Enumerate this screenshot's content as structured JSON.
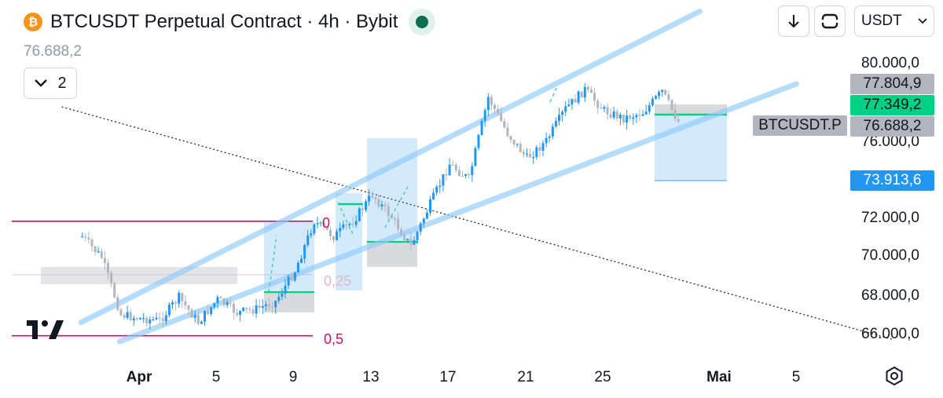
{
  "header": {
    "coin_symbol": "₿",
    "title": "BTCUSDT Perpetual Contract · 4h · Bybit",
    "last_price": "76.688,2",
    "indicator_count": "2"
  },
  "toolbar": {
    "currency": "USDT",
    "download_icon": "arrow-down-icon",
    "fullscreen_icon": "fullscreen-icon",
    "settings_icon": "settings-icon"
  },
  "price_axis": {
    "labels": [
      "80.000,0",
      "76.000,0",
      "72.000,0",
      "70.000,0",
      "68.000,0",
      "66.000,0"
    ]
  },
  "time_axis": {
    "labels": [
      {
        "text": "Apr",
        "bold": true
      },
      {
        "text": "5",
        "bold": false
      },
      {
        "text": "9",
        "bold": false
      },
      {
        "text": "13",
        "bold": false
      },
      {
        "text": "17",
        "bold": false
      },
      {
        "text": "21",
        "bold": false
      },
      {
        "text": "25",
        "bold": false
      },
      {
        "text": "Mai",
        "bold": true
      },
      {
        "text": "5",
        "bold": false
      }
    ]
  },
  "price_tags": {
    "high": "77.804,9",
    "mid": "77.349,2",
    "current": "76.688,2",
    "target": "73.913,6",
    "symbol": "BTCUSDT.P"
  },
  "fib_labels": {
    "zero": "0",
    "quarter": "0,25",
    "half": "0,5"
  },
  "colors": {
    "up": "#2196f3",
    "down": "#b2b5be",
    "channel": "#90caf9",
    "fib": "#c2185b",
    "green": "#00d084",
    "target_tag": "#2196f3",
    "status": "#0b6e4f"
  },
  "chart_data": {
    "type": "candlestick",
    "symbol": "BTCUSDT Perpetual Contract",
    "interval": "4h",
    "exchange": "Bybit",
    "x_range": [
      "2024-03-28",
      "2024-05-07"
    ],
    "ylim": [
      65000,
      81000
    ],
    "close_path": [
      [
        "2024-03-29",
        71000
      ],
      [
        "2024-03-30",
        69900
      ],
      [
        "2024-03-31",
        66900
      ],
      [
        "2024-04-01",
        66700
      ],
      [
        "2024-04-02",
        66600
      ],
      [
        "2024-04-03",
        67800
      ],
      [
        "2024-04-04",
        66500
      ],
      [
        "2024-04-05",
        67700
      ],
      [
        "2024-04-06",
        67000
      ],
      [
        "2024-04-07",
        67200
      ],
      [
        "2024-04-08",
        67600
      ],
      [
        "2024-04-09",
        69200
      ],
      [
        "2024-04-10",
        71800
      ],
      [
        "2024-04-11",
        71000
      ],
      [
        "2024-04-12",
        71800
      ],
      [
        "2024-04-13",
        73200
      ],
      [
        "2024-04-14",
        72000
      ],
      [
        "2024-04-15",
        70500
      ],
      [
        "2024-04-16",
        72700
      ],
      [
        "2024-04-17",
        74800
      ],
      [
        "2024-04-18",
        74000
      ],
      [
        "2024-04-19",
        78300
      ],
      [
        "2024-04-20",
        76400
      ],
      [
        "2024-04-21",
        75100
      ],
      [
        "2024-04-22",
        76000
      ],
      [
        "2024-04-23",
        77700
      ],
      [
        "2024-04-24",
        78700
      ],
      [
        "2024-04-25",
        77600
      ],
      [
        "2024-04-26",
        77200
      ],
      [
        "2024-04-27",
        77500
      ],
      [
        "2024-04-28",
        78600
      ],
      [
        "2024-04-29",
        76700
      ]
    ],
    "channel": {
      "upper": [
        [
          "2024-03-29",
          66500
        ],
        [
          "2024-04-30",
          82800
        ]
      ],
      "lower": [
        [
          "2024-03-31",
          65500
        ],
        [
          "2024-05-05",
          79000
        ]
      ]
    },
    "trendline": [
      [
        "2024-03-28",
        77800
      ],
      [
        "2024-05-10",
        65600
      ]
    ],
    "fib_levels": [
      {
        "label": "0",
        "price": 71800
      },
      {
        "label": "0,25",
        "price": 69000
      },
      {
        "label": "0,5",
        "price": 65800
      }
    ],
    "last_price": 76688.2,
    "target_price": 73913.6
  }
}
